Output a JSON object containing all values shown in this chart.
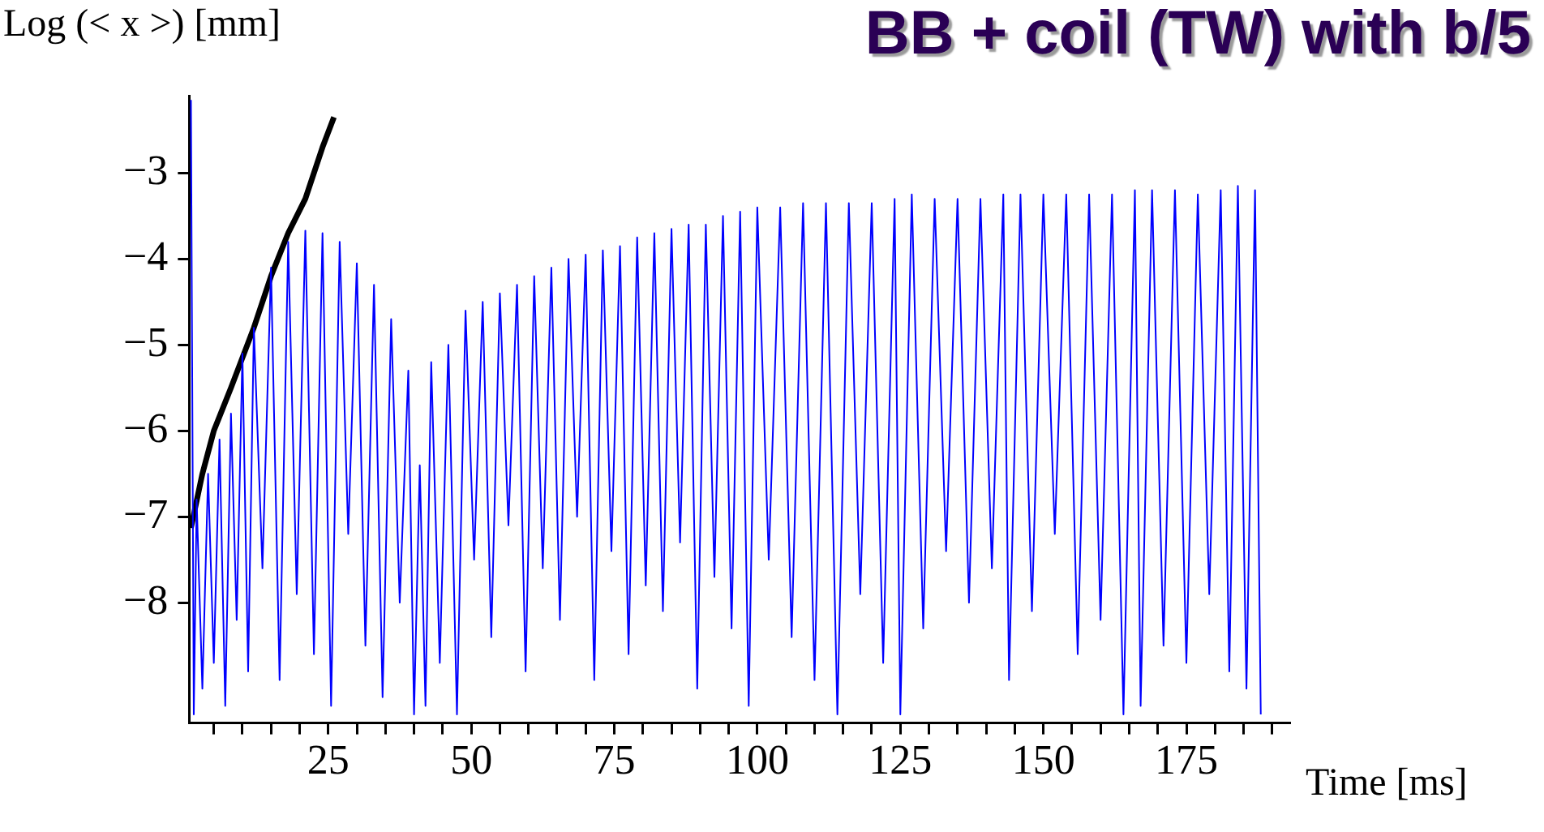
{
  "chart_data": {
    "type": "line",
    "title": "BB + coil (TW) with b/5",
    "xlabel": "Time  [ms]",
    "ylabel": "Log (< x >)  [mm]",
    "xlim": [
      0.7,
      193
    ],
    "ylim": [
      -9.4,
      -2.1
    ],
    "xticks": [
      {
        "value": 5,
        "label": null
      },
      {
        "value": 10,
        "label": null
      },
      {
        "value": 15,
        "label": null
      },
      {
        "value": 20,
        "label": null
      },
      25,
      {
        "value": 30,
        "label": null
      },
      {
        "value": 35,
        "label": null
      },
      {
        "value": 40,
        "label": null
      },
      {
        "value": 45,
        "label": null
      },
      50,
      {
        "value": 55,
        "label": null
      },
      {
        "value": 60,
        "label": null
      },
      {
        "value": 65,
        "label": null
      },
      {
        "value": 70,
        "label": null
      },
      75,
      {
        "value": 80,
        "label": null
      },
      {
        "value": 85,
        "label": null
      },
      {
        "value": 90,
        "label": null
      },
      {
        "value": 95,
        "label": null
      },
      100,
      {
        "value": 105,
        "label": null
      },
      {
        "value": 110,
        "label": null
      },
      {
        "value": 115,
        "label": null
      },
      {
        "value": 120,
        "label": null
      },
      125,
      {
        "value": 130,
        "label": null
      },
      {
        "value": 135,
        "label": null
      },
      {
        "value": 140,
        "label": null
      },
      {
        "value": 145,
        "label": null
      },
      150,
      {
        "value": 155,
        "label": null
      },
      {
        "value": 160,
        "label": null
      },
      {
        "value": 165,
        "label": null
      },
      {
        "value": 170,
        "label": null
      },
      175,
      {
        "value": 180,
        "label": null
      },
      {
        "value": 185,
        "label": null
      },
      {
        "value": 190,
        "label": null
      }
    ],
    "yticks": [
      {
        "value": -8,
        "label": "−8"
      },
      {
        "value": -7,
        "label": "−7"
      },
      {
        "value": -6,
        "label": "−6"
      },
      {
        "value": -5,
        "label": "−5"
      },
      {
        "value": -4,
        "label": "−4"
      },
      {
        "value": -3,
        "label": "−3"
      }
    ],
    "grid": false,
    "legend": false,
    "marker": "none",
    "line_style": "solid",
    "series": [
      {
        "color": "#0000ff",
        "x": [
          1,
          1.5,
          2,
          3,
          4,
          5,
          6,
          7,
          8,
          9,
          10,
          11,
          12,
          13.5,
          15,
          16.5,
          18,
          19.5,
          21,
          22.5,
          24,
          25.5,
          27,
          28.5,
          30,
          31.5,
          33,
          34.5,
          36,
          37.5,
          39,
          40,
          41,
          42,
          43,
          44.5,
          46,
          47.5,
          49,
          50.5,
          52,
          53.5,
          55,
          56.5,
          58,
          59.5,
          61,
          62.5,
          64,
          65.5,
          67,
          68.5,
          70,
          71.5,
          73,
          74.5,
          76,
          77.5,
          79,
          80.5,
          82,
          83.5,
          85,
          86.5,
          88,
          89.5,
          91,
          92.5,
          94,
          95.5,
          97,
          98.5,
          100,
          102,
          104,
          106,
          108,
          110,
          112,
          114,
          116,
          118,
          120,
          122,
          124,
          125,
          127,
          129,
          131,
          133,
          135,
          137,
          139,
          141,
          143,
          144,
          146,
          148,
          150,
          152,
          154,
          156,
          158,
          160,
          162,
          164,
          166,
          167,
          169,
          171,
          173,
          175,
          177,
          179,
          181,
          182.5,
          184,
          185.5,
          187,
          188
        ],
        "values": [
          -2.15,
          -9.3,
          -6.8,
          -9.0,
          -6.5,
          -8.7,
          -6.1,
          -9.2,
          -5.8,
          -8.2,
          -5.1,
          -8.8,
          -4.8,
          -7.6,
          -4.1,
          -8.9,
          -3.8,
          -7.9,
          -3.67,
          -8.6,
          -3.7,
          -9.2,
          -3.8,
          -7.2,
          -4.05,
          -8.5,
          -4.3,
          -9.1,
          -4.7,
          -8.0,
          -5.3,
          -9.3,
          -6.4,
          -9.2,
          -5.2,
          -8.7,
          -5.0,
          -9.3,
          -4.6,
          -7.5,
          -4.5,
          -8.4,
          -4.4,
          -7.1,
          -4.3,
          -8.8,
          -4.2,
          -7.6,
          -4.1,
          -8.2,
          -4.0,
          -7.0,
          -3.95,
          -8.9,
          -3.9,
          -7.4,
          -3.85,
          -8.6,
          -3.75,
          -7.8,
          -3.7,
          -8.1,
          -3.65,
          -7.3,
          -3.6,
          -9.0,
          -3.6,
          -7.7,
          -3.5,
          -8.3,
          -3.45,
          -9.2,
          -3.4,
          -7.5,
          -3.4,
          -8.4,
          -3.35,
          -8.9,
          -3.35,
          -9.3,
          -3.35,
          -7.9,
          -3.35,
          -8.7,
          -3.3,
          -9.3,
          -3.25,
          -8.3,
          -3.3,
          -7.4,
          -3.3,
          -8.0,
          -3.3,
          -7.6,
          -3.25,
          -8.9,
          -3.25,
          -8.1,
          -3.25,
          -7.2,
          -3.25,
          -8.6,
          -3.25,
          -8.2,
          -3.25,
          -9.3,
          -3.2,
          -9.2,
          -3.2,
          -8.5,
          -3.2,
          -8.7,
          -3.25,
          -7.9,
          -3.2,
          -8.8,
          -3.15,
          -9.0,
          -3.2,
          -9.3
        ]
      },
      {
        "color": "#000000",
        "x": [
          1,
          3,
          5,
          8,
          12,
          15,
          18,
          21,
          24,
          26
        ],
        "values": [
          -7.13,
          -6.5,
          -6.0,
          -5.5,
          -4.8,
          -4.2,
          -3.7,
          -3.3,
          -2.7,
          -2.35
        ]
      }
    ]
  }
}
